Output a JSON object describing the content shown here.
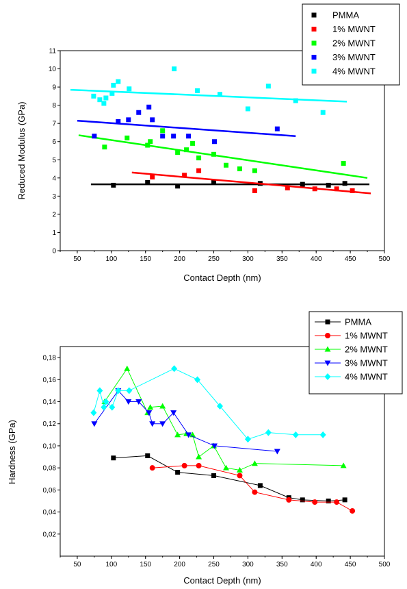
{
  "chart_data": [
    {
      "type": "scatter",
      "xlabel": "Contact Depth (nm)",
      "ylabel": "Reduced Modulus (GPa)",
      "xlim": [
        25,
        500
      ],
      "ylim": [
        0,
        11
      ],
      "x_ticks": [
        "50",
        "100",
        "150",
        "200",
        "250",
        "300",
        "350",
        "400",
        "450",
        "500"
      ],
      "y_ticks": [
        "0",
        "1",
        "2",
        "3",
        "4",
        "5",
        "6",
        "7",
        "8",
        "9",
        "10",
        "11"
      ],
      "legend_position": "top-right",
      "series": [
        {
          "name": "PMMA",
          "color": "#000000",
          "marker": "square",
          "points": [
            [
              103,
              3.6
            ],
            [
              153,
              3.75
            ],
            [
              197,
              3.55
            ],
            [
              250,
              3.75
            ],
            [
              318,
              3.7
            ],
            [
              380,
              3.65
            ],
            [
              418,
              3.6
            ],
            [
              442,
              3.7
            ]
          ],
          "fit": [
            [
              70,
              3.65
            ],
            [
              478,
              3.65
            ]
          ]
        },
        {
          "name": "1% MWNT",
          "color": "#ff0000",
          "marker": "square",
          "points": [
            [
              160,
              4.05
            ],
            [
              207,
              4.15
            ],
            [
              228,
              4.4
            ],
            [
              310,
              3.3
            ],
            [
              358,
              3.45
            ],
            [
              398,
              3.4
            ],
            [
              430,
              3.4
            ],
            [
              453,
              3.3
            ]
          ],
          "fit": [
            [
              130,
              4.3
            ],
            [
              480,
              3.15
            ]
          ]
        },
        {
          "name": "2% MWNT",
          "color": "#00ff00",
          "marker": "square",
          "points": [
            [
              90,
              5.7
            ],
            [
              123,
              6.2
            ],
            [
              153,
              5.8
            ],
            [
              157,
              6.0
            ],
            [
              175,
              6.6
            ],
            [
              197,
              5.4
            ],
            [
              210,
              5.55
            ],
            [
              219,
              5.9
            ],
            [
              228,
              5.1
            ],
            [
              250,
              5.3
            ],
            [
              268,
              4.7
            ],
            [
              288,
              4.5
            ],
            [
              310,
              4.4
            ],
            [
              440,
              4.8
            ]
          ],
          "fit": [
            [
              52,
              6.35
            ],
            [
              475,
              4.0
            ]
          ]
        },
        {
          "name": "3% MWNT",
          "color": "#0000ff",
          "marker": "square",
          "points": [
            [
              75,
              6.3
            ],
            [
              110,
              7.1
            ],
            [
              125,
              7.2
            ],
            [
              140,
              7.6
            ],
            [
              155,
              7.9
            ],
            [
              160,
              7.2
            ],
            [
              175,
              6.3
            ],
            [
              191,
              6.3
            ],
            [
              213,
              6.3
            ],
            [
              251,
              6.0
            ],
            [
              343,
              6.7
            ]
          ],
          "fit": [
            [
              50,
              7.15
            ],
            [
              370,
              6.3
            ]
          ]
        },
        {
          "name": "4% MWNT",
          "color": "#00ffff",
          "marker": "square",
          "points": [
            [
              74,
              8.5
            ],
            [
              83,
              8.3
            ],
            [
              89,
              8.1
            ],
            [
              92,
              8.4
            ],
            [
              101,
              8.65
            ],
            [
              103,
              9.1
            ],
            [
              110,
              9.3
            ],
            [
              126,
              8.9
            ],
            [
              192,
              10.0
            ],
            [
              226,
              8.8
            ],
            [
              259,
              8.6
            ],
            [
              300,
              7.8
            ],
            [
              330,
              9.05
            ],
            [
              370,
              8.25
            ],
            [
              410,
              7.6
            ]
          ],
          "fit": [
            [
              40,
              8.85
            ],
            [
              445,
              8.2
            ]
          ]
        }
      ]
    },
    {
      "type": "line",
      "xlabel": "Contact Depth (nm)",
      "ylabel": "Hardness (GPa)",
      "xlim": [
        25,
        500
      ],
      "ylim": [
        0,
        0.19
      ],
      "x_ticks": [
        "50",
        "100",
        "150",
        "200",
        "250",
        "300",
        "350",
        "400",
        "450",
        "500"
      ],
      "y_ticks": [
        "0,02",
        "0,04",
        "0,06",
        "0,08",
        "0,10",
        "0,12",
        "0,14",
        "0,16",
        "0,18"
      ],
      "legend_position": "top-right",
      "series": [
        {
          "name": "PMMA",
          "color": "#000000",
          "marker": "square",
          "points": [
            [
              103,
              0.089
            ],
            [
              153,
              0.091
            ],
            [
              197,
              0.076
            ],
            [
              250,
              0.073
            ],
            [
              318,
              0.064
            ],
            [
              360,
              0.053
            ],
            [
              380,
              0.051
            ],
            [
              418,
              0.05
            ],
            [
              442,
              0.051
            ]
          ]
        },
        {
          "name": "1% MWNT",
          "color": "#ff0000",
          "marker": "circle",
          "points": [
            [
              160,
              0.08
            ],
            [
              207,
              0.082
            ],
            [
              228,
              0.082
            ],
            [
              288,
              0.073
            ],
            [
              310,
              0.058
            ],
            [
              360,
              0.051
            ],
            [
              398,
              0.049
            ],
            [
              430,
              0.049
            ],
            [
              453,
              0.041
            ]
          ]
        },
        {
          "name": "2% MWNT",
          "color": "#00ff00",
          "marker": "triangle-up",
          "points": [
            [
              90,
              0.14
            ],
            [
              123,
              0.17
            ],
            [
              153,
              0.13
            ],
            [
              157,
              0.135
            ],
            [
              175,
              0.136
            ],
            [
              197,
              0.11
            ],
            [
              210,
              0.111
            ],
            [
              219,
              0.11
            ],
            [
              228,
              0.09
            ],
            [
              250,
              0.1
            ],
            [
              268,
              0.08
            ],
            [
              288,
              0.078
            ],
            [
              310,
              0.084
            ],
            [
              440,
              0.082
            ]
          ]
        },
        {
          "name": "3% MWNT",
          "color": "#0000ff",
          "marker": "triangle-down",
          "points": [
            [
              75,
              0.12
            ],
            [
              110,
              0.15
            ],
            [
              125,
              0.14
            ],
            [
              140,
              0.14
            ],
            [
              155,
              0.13
            ],
            [
              160,
              0.12
            ],
            [
              175,
              0.12
            ],
            [
              191,
              0.13
            ],
            [
              213,
              0.11
            ],
            [
              251,
              0.1
            ],
            [
              343,
              0.095
            ]
          ]
        },
        {
          "name": "4% MWNT",
          "color": "#00ffff",
          "marker": "diamond",
          "points": [
            [
              74,
              0.13
            ],
            [
              83,
              0.15
            ],
            [
              89,
              0.135
            ],
            [
              92,
              0.14
            ],
            [
              101,
              0.135
            ],
            [
              110,
              0.15
            ],
            [
              126,
              0.15
            ],
            [
              192,
              0.17
            ],
            [
              226,
              0.16
            ],
            [
              259,
              0.136
            ],
            [
              300,
              0.106
            ],
            [
              330,
              0.112
            ],
            [
              370,
              0.11
            ],
            [
              410,
              0.11
            ]
          ]
        }
      ]
    }
  ]
}
